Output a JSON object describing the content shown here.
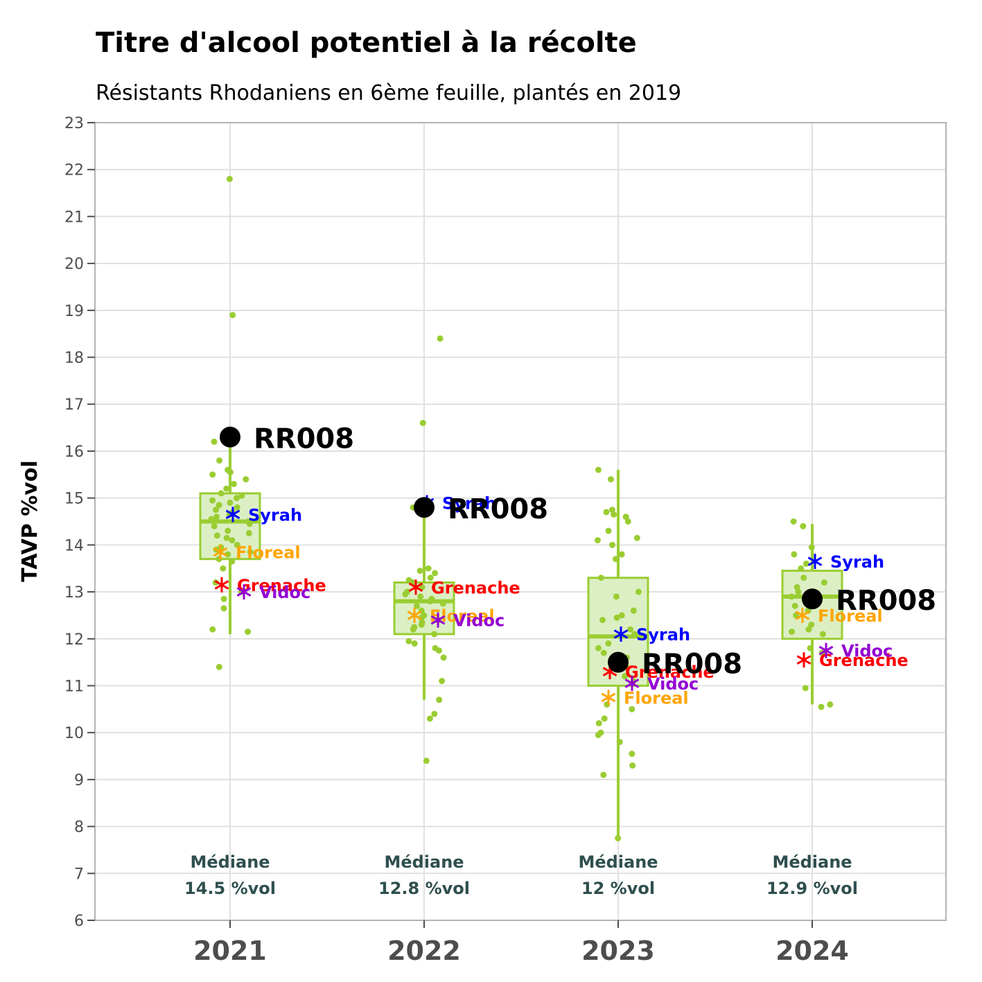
{
  "chart_data": {
    "type": "box",
    "title": "Titre d'alcool potentiel à la récolte",
    "subtitle": "Résistants Rhodaniens en 6ème feuille, plantés en 2019",
    "ylabel": "TAVP %vol",
    "xlabel": "",
    "ylim": [
      6,
      23
    ],
    "yticks": [
      6,
      7,
      8,
      9,
      10,
      11,
      12,
      13,
      14,
      15,
      16,
      17,
      18,
      19,
      20,
      21,
      22,
      23
    ],
    "categories": [
      "2021",
      "2022",
      "2023",
      "2024"
    ],
    "grid": true,
    "colors": {
      "box": "#9acd32",
      "box_fill": "#dcefc4",
      "points": "#9acd32",
      "highlight": "#000000",
      "median_text": "#2f4f4f",
      "Syrah": "#0000ff",
      "Floreal": "#ffa500",
      "Grenache": "#ff0000",
      "Vidoc": "#9400d3"
    },
    "boxes": [
      {
        "year": "2021",
        "q1": 13.7,
        "median": 14.5,
        "q3": 15.1,
        "whisker_low": 12.1,
        "whisker_high": 16.2
      },
      {
        "year": "2022",
        "q1": 12.1,
        "median": 12.8,
        "q3": 13.2,
        "whisker_low": 10.7,
        "whisker_high": 14.8
      },
      {
        "year": "2023",
        "q1": 11.0,
        "median": 12.05,
        "q3": 13.3,
        "whisker_low": 7.75,
        "whisker_high": 15.6
      },
      {
        "year": "2024",
        "q1": 12.0,
        "median": 12.9,
        "q3": 13.45,
        "whisker_low": 10.6,
        "whisker_high": 14.45
      }
    ],
    "median_labels": [
      {
        "year": "2021",
        "line1": "Médiane",
        "line2": "14.5 %vol"
      },
      {
        "year": "2022",
        "line1": "Médiane",
        "line2": "12.8 %vol"
      },
      {
        "year": "2023",
        "line1": "Médiane",
        "line2": "12 %vol"
      },
      {
        "year": "2024",
        "line1": "Médiane",
        "line2": "12.9 %vol"
      }
    ],
    "highlight": {
      "name": "RR008",
      "values": [
        16.3,
        14.8,
        11.5,
        12.85
      ]
    },
    "references": [
      {
        "name": "Syrah",
        "values": [
          14.65,
          14.9,
          12.1,
          13.65
        ]
      },
      {
        "name": "Floreal",
        "values": [
          13.85,
          12.5,
          10.75,
          12.5
        ]
      },
      {
        "name": "Grenache",
        "values": [
          13.15,
          13.1,
          11.3,
          11.55
        ]
      },
      {
        "name": "Vidoc",
        "values": [
          13.0,
          12.4,
          11.05,
          11.75
        ]
      }
    ],
    "points": [
      {
        "year": "2021",
        "values": [
          21.8,
          18.9,
          16.2,
          15.8,
          15.6,
          15.55,
          15.5,
          15.4,
          15.3,
          15.2,
          15.1,
          15.05,
          15.0,
          14.95,
          14.9,
          14.85,
          14.8,
          14.75,
          14.7,
          14.65,
          14.6,
          14.55,
          14.5,
          14.45,
          14.4,
          14.3,
          14.25,
          14.2,
          14.15,
          14.1,
          14.0,
          13.95,
          13.9,
          13.85,
          13.8,
          13.7,
          13.65,
          13.5,
          13.2,
          13.0,
          12.85,
          12.65,
          12.2,
          12.15,
          11.4
        ]
      },
      {
        "year": "2022",
        "values": [
          18.4,
          16.6,
          14.8,
          13.5,
          13.45,
          13.4,
          13.3,
          13.25,
          13.2,
          13.1,
          13.0,
          12.95,
          12.9,
          12.85,
          12.8,
          12.75,
          12.7,
          12.6,
          12.5,
          12.45,
          12.4,
          12.35,
          12.3,
          12.25,
          12.2,
          12.1,
          11.95,
          11.9,
          11.8,
          11.75,
          11.6,
          11.1,
          10.7,
          10.4,
          10.3,
          9.4
        ]
      },
      {
        "year": "2023",
        "values": [
          15.6,
          15.4,
          14.75,
          14.7,
          14.65,
          14.6,
          14.5,
          14.3,
          14.15,
          14.1,
          14.0,
          13.8,
          13.7,
          13.3,
          13.0,
          12.9,
          12.6,
          12.5,
          12.45,
          12.4,
          12.2,
          12.1,
          11.9,
          11.8,
          11.7,
          11.6,
          11.4,
          11.2,
          11.1,
          10.6,
          10.5,
          10.3,
          10.2,
          10.0,
          9.95,
          9.8,
          9.55,
          9.3,
          9.1,
          7.75
        ]
      },
      {
        "year": "2024",
        "values": [
          14.5,
          14.4,
          13.95,
          13.8,
          13.6,
          13.5,
          13.3,
          13.2,
          13.1,
          13.0,
          12.9,
          12.8,
          12.7,
          12.6,
          12.5,
          12.3,
          12.2,
          12.15,
          12.1,
          11.8,
          11.7,
          10.95,
          10.6,
          10.55
        ]
      }
    ]
  }
}
